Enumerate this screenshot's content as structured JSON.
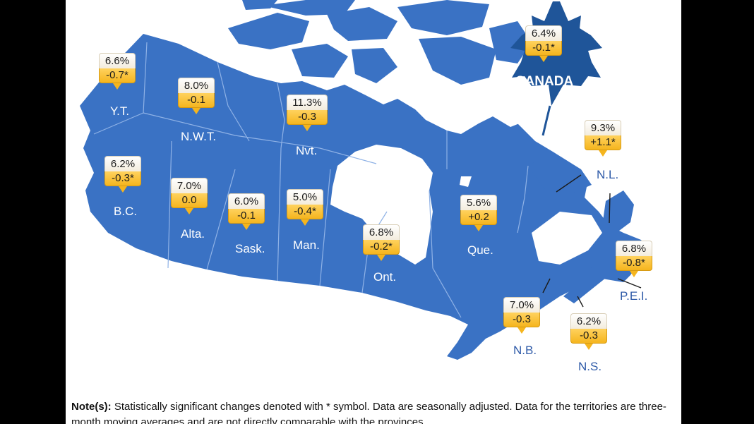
{
  "national": {
    "label": "CANADA",
    "rate": "6.4%",
    "change": "-0.1*"
  },
  "regions": [
    {
      "id": "yt",
      "label": "Y.T.",
      "rate": "6.6%",
      "change": "-0.7*"
    },
    {
      "id": "nwt",
      "label": "N.W.T.",
      "rate": "8.0%",
      "change": "-0.1"
    },
    {
      "id": "nvt",
      "label": "Nvt.",
      "rate": "11.3%",
      "change": "-0.3"
    },
    {
      "id": "bc",
      "label": "B.C.",
      "rate": "6.2%",
      "change": "-0.3*"
    },
    {
      "id": "alta",
      "label": "Alta.",
      "rate": "7.0%",
      "change": "0.0"
    },
    {
      "id": "sask",
      "label": "Sask.",
      "rate": "6.0%",
      "change": "-0.1"
    },
    {
      "id": "man",
      "label": "Man.",
      "rate": "5.0%",
      "change": "-0.4*"
    },
    {
      "id": "ont",
      "label": "Ont.",
      "rate": "6.8%",
      "change": "-0.2*"
    },
    {
      "id": "que",
      "label": "Que.",
      "rate": "5.6%",
      "change": "+0.2"
    },
    {
      "id": "nl",
      "label": "N.L.",
      "rate": "9.3%",
      "change": "+1.1*"
    },
    {
      "id": "pei",
      "label": "P.E.I.",
      "rate": "6.8%",
      "change": "-0.8*"
    },
    {
      "id": "nb",
      "label": "N.B.",
      "rate": "7.0%",
      "change": "-0.3"
    },
    {
      "id": "ns",
      "label": "N.S.",
      "rate": "6.2%",
      "change": "-0.3"
    }
  ],
  "note": {
    "heading": "Note(s):",
    "text": "Statistically significant changes denoted with * symbol. Data are seasonally adjusted. Data for the territories are three-month moving averages and are not directly comparable with the provinces."
  },
  "colors": {
    "map_fill": "#3a72c4",
    "map_border": "#8fb2e6",
    "leaf_fill": "#1f5599",
    "callout_gold": "#f5b51e"
  }
}
